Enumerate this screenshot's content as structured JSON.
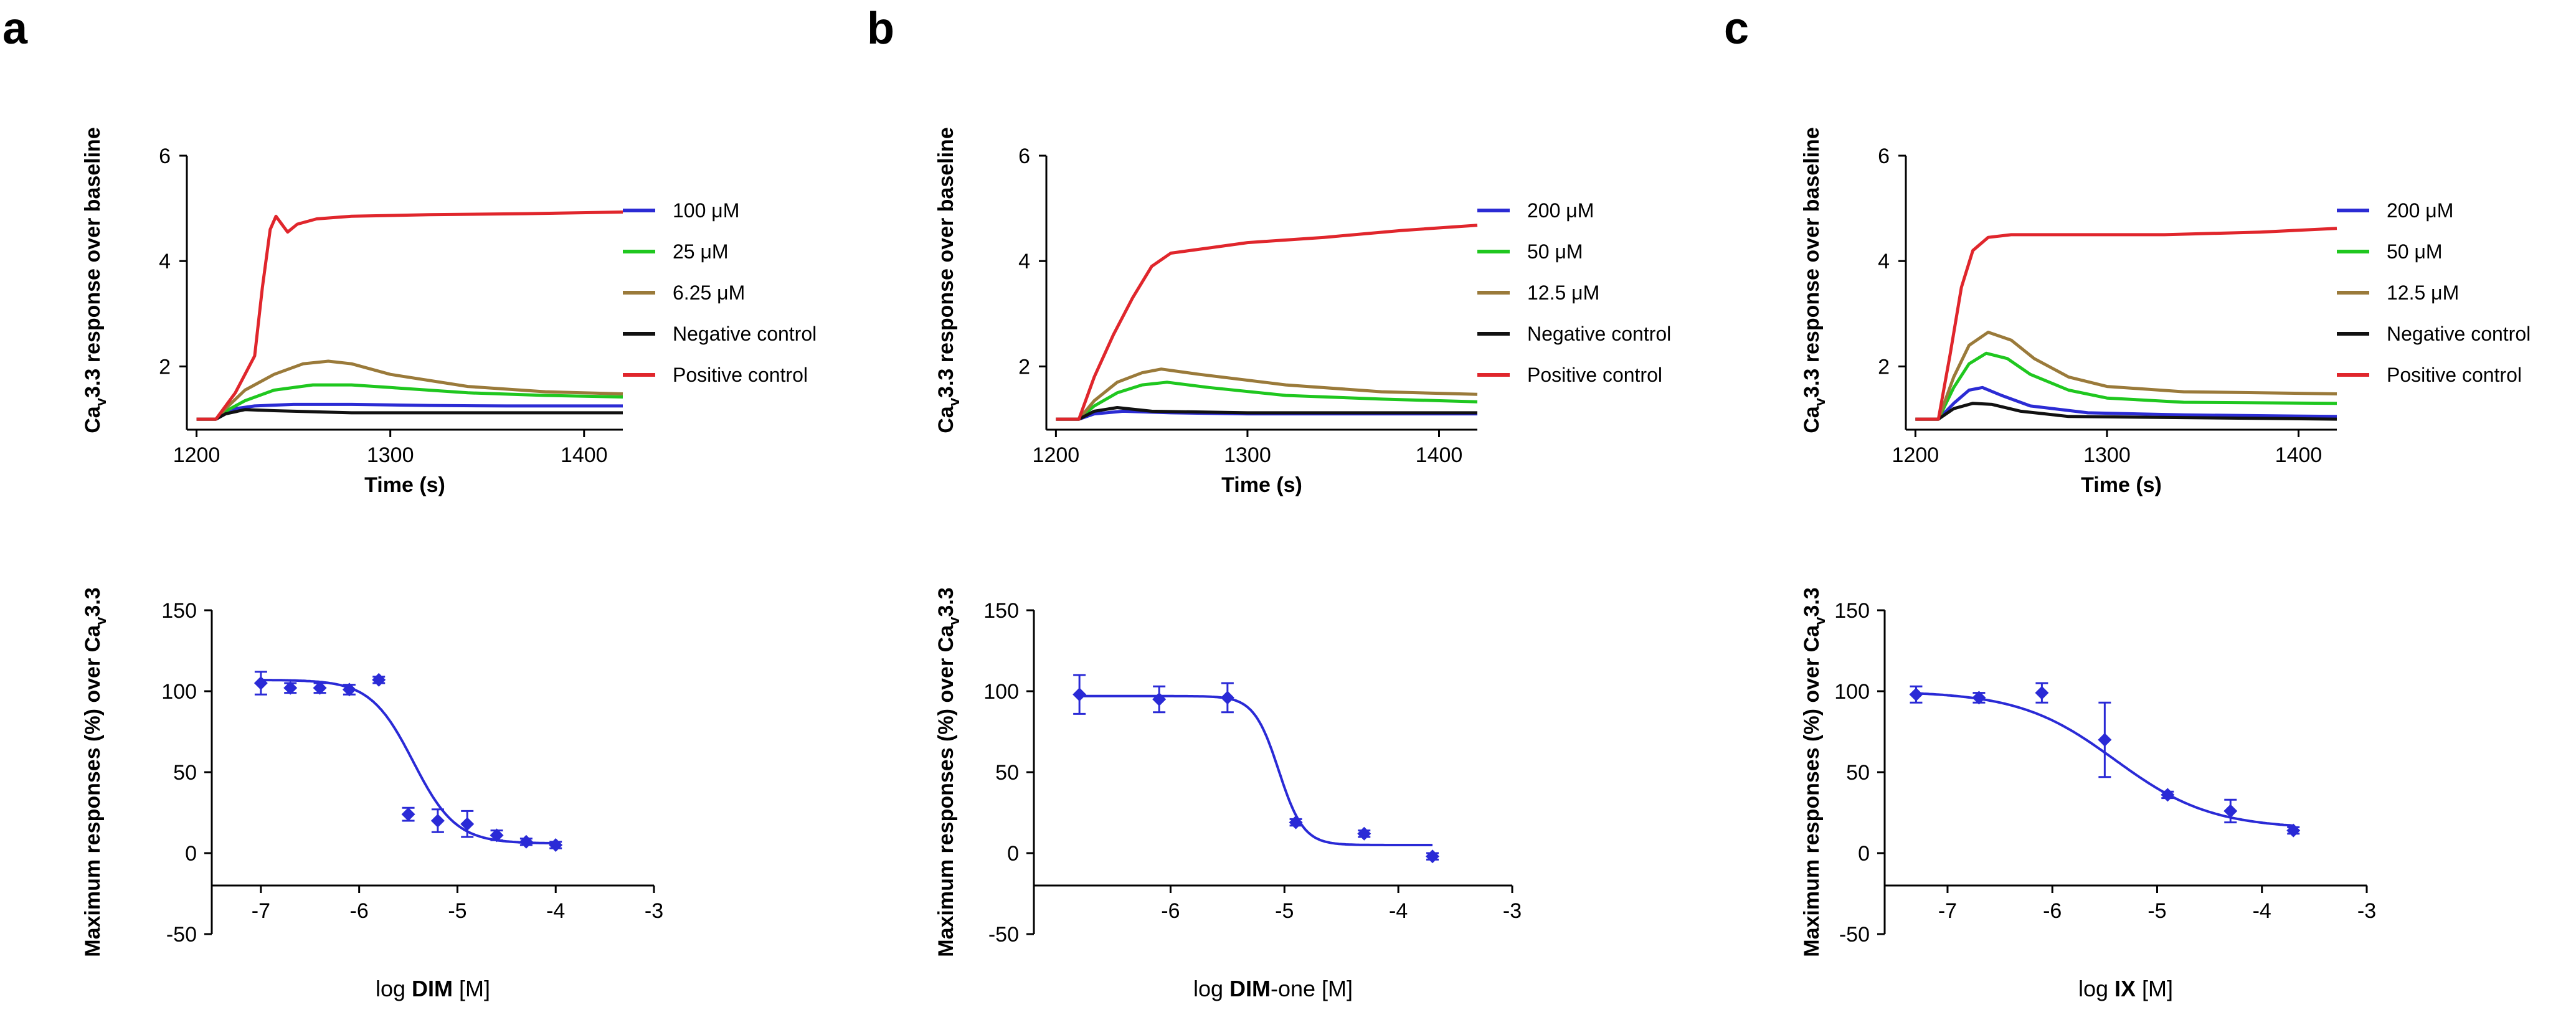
{
  "colors": {
    "blue": "#2b2bd4",
    "green": "#1fc71f",
    "brown": "#9a7a3a",
    "black": "#111111",
    "red": "#e0262c",
    "fit": "#2a2ad6"
  },
  "chart_data": [
    {
      "panel": "a",
      "type": "line",
      "title": "",
      "xlabel": "Time (s)",
      "ylabel_main": "Ca",
      "ylabel_sub": "v",
      "ylabel_rest": "3.3 response over baseline",
      "xlim": [
        1195,
        1420
      ],
      "ylim": [
        0.8,
        6
      ],
      "xticks": [
        1200,
        1300,
        1400
      ],
      "yticks": [
        2,
        4,
        6
      ],
      "series": [
        {
          "name": "100 μM",
          "color": "blue",
          "x": [
            1200,
            1210,
            1215,
            1220,
            1230,
            1250,
            1280,
            1320,
            1360,
            1420
          ],
          "y": [
            1.0,
            1.0,
            1.1,
            1.2,
            1.25,
            1.28,
            1.28,
            1.26,
            1.25,
            1.25
          ]
        },
        {
          "name": "25 μM",
          "color": "green",
          "x": [
            1200,
            1210,
            1215,
            1225,
            1240,
            1260,
            1280,
            1300,
            1340,
            1380,
            1420
          ],
          "y": [
            1.0,
            1.0,
            1.15,
            1.35,
            1.55,
            1.65,
            1.65,
            1.6,
            1.5,
            1.45,
            1.42
          ]
        },
        {
          "name": "6.25 μM",
          "color": "brown",
          "x": [
            1200,
            1210,
            1215,
            1225,
            1240,
            1255,
            1268,
            1280,
            1300,
            1340,
            1380,
            1420
          ],
          "y": [
            1.0,
            1.0,
            1.2,
            1.55,
            1.85,
            2.05,
            2.1,
            2.05,
            1.85,
            1.62,
            1.52,
            1.48
          ]
        },
        {
          "name": "Negative control",
          "color": "black",
          "x": [
            1200,
            1210,
            1215,
            1225,
            1240,
            1280,
            1340,
            1420
          ],
          "y": [
            1.0,
            1.0,
            1.1,
            1.18,
            1.16,
            1.12,
            1.12,
            1.12
          ]
        },
        {
          "name": "Positive control",
          "color": "red",
          "x": [
            1200,
            1210,
            1220,
            1230,
            1234,
            1238,
            1241,
            1244,
            1247,
            1252,
            1262,
            1280,
            1320,
            1370,
            1420
          ],
          "y": [
            1.0,
            1.0,
            1.5,
            2.2,
            3.5,
            4.6,
            4.85,
            4.7,
            4.55,
            4.7,
            4.8,
            4.85,
            4.88,
            4.9,
            4.93
          ]
        }
      ]
    },
    {
      "panel": "b",
      "type": "line",
      "title": "",
      "xlabel": "Time (s)",
      "ylabel_main": "Ca",
      "ylabel_sub": "v",
      "ylabel_rest": "3.3 response over baseline",
      "xlim": [
        1195,
        1420
      ],
      "ylim": [
        0.8,
        6
      ],
      "xticks": [
        1200,
        1300,
        1400
      ],
      "yticks": [
        2,
        4,
        6
      ],
      "series": [
        {
          "name": "200 μM",
          "color": "blue",
          "x": [
            1200,
            1212,
            1220,
            1235,
            1260,
            1300,
            1420
          ],
          "y": [
            1.0,
            1.0,
            1.1,
            1.15,
            1.12,
            1.1,
            1.1
          ]
        },
        {
          "name": "50 μM",
          "color": "green",
          "x": [
            1200,
            1212,
            1220,
            1232,
            1245,
            1258,
            1280,
            1320,
            1370,
            1420
          ],
          "y": [
            1.0,
            1.0,
            1.25,
            1.5,
            1.65,
            1.7,
            1.6,
            1.45,
            1.38,
            1.33
          ]
        },
        {
          "name": "12.5 μM",
          "color": "brown",
          "x": [
            1200,
            1212,
            1220,
            1232,
            1245,
            1255,
            1275,
            1320,
            1370,
            1420
          ],
          "y": [
            1.0,
            1.0,
            1.35,
            1.7,
            1.88,
            1.95,
            1.85,
            1.65,
            1.52,
            1.47
          ]
        },
        {
          "name": "Negative control",
          "color": "black",
          "x": [
            1200,
            1212,
            1220,
            1232,
            1250,
            1300,
            1420
          ],
          "y": [
            1.0,
            1.0,
            1.15,
            1.22,
            1.15,
            1.12,
            1.12
          ]
        },
        {
          "name": "Positive control",
          "color": "red",
          "x": [
            1200,
            1212,
            1220,
            1230,
            1240,
            1250,
            1260,
            1280,
            1300,
            1340,
            1380,
            1420
          ],
          "y": [
            1.0,
            1.0,
            1.8,
            2.6,
            3.3,
            3.9,
            4.15,
            4.25,
            4.35,
            4.45,
            4.58,
            4.68
          ]
        }
      ]
    },
    {
      "panel": "c",
      "type": "line",
      "title": "",
      "xlabel": "Time (s)",
      "ylabel_main": "Ca",
      "ylabel_sub": "v",
      "ylabel_rest": "3.3 response over baseline",
      "xlim": [
        1195,
        1420
      ],
      "ylim": [
        0.8,
        6
      ],
      "xticks": [
        1200,
        1300,
        1400
      ],
      "yticks": [
        2,
        4,
        6
      ],
      "series": [
        {
          "name": "200 μM",
          "color": "blue",
          "x": [
            1200,
            1212,
            1220,
            1228,
            1235,
            1245,
            1260,
            1290,
            1340,
            1420
          ],
          "y": [
            1.0,
            1.0,
            1.3,
            1.55,
            1.6,
            1.45,
            1.25,
            1.12,
            1.08,
            1.05
          ]
        },
        {
          "name": "50 μM",
          "color": "green",
          "x": [
            1200,
            1212,
            1220,
            1228,
            1237,
            1248,
            1260,
            1280,
            1300,
            1340,
            1420
          ],
          "y": [
            1.0,
            1.0,
            1.6,
            2.05,
            2.25,
            2.15,
            1.85,
            1.55,
            1.4,
            1.32,
            1.3
          ]
        },
        {
          "name": "12.5 μM",
          "color": "brown",
          "x": [
            1200,
            1212,
            1220,
            1228,
            1238,
            1250,
            1262,
            1280,
            1300,
            1340,
            1420
          ],
          "y": [
            1.0,
            1.0,
            1.8,
            2.4,
            2.65,
            2.5,
            2.15,
            1.8,
            1.62,
            1.52,
            1.48
          ]
        },
        {
          "name": "Negative control",
          "color": "black",
          "x": [
            1200,
            1212,
            1220,
            1230,
            1240,
            1255,
            1280,
            1420
          ],
          "y": [
            1.0,
            1.0,
            1.2,
            1.3,
            1.28,
            1.15,
            1.05,
            1.0
          ]
        },
        {
          "name": "Positive control",
          "color": "red",
          "x": [
            1200,
            1212,
            1218,
            1224,
            1230,
            1238,
            1250,
            1280,
            1330,
            1380,
            1420
          ],
          "y": [
            1.0,
            1.0,
            2.2,
            3.5,
            4.2,
            4.45,
            4.5,
            4.5,
            4.5,
            4.55,
            4.62
          ]
        }
      ]
    },
    {
      "panel": "a",
      "type": "scatter",
      "subtype": "dose-response",
      "xlabel_prefix": "log ",
      "xlabel_bold": "DIM",
      "xlabel_suffix": " [M]",
      "ylabel_main": "Maximum responses (%) over Ca",
      "ylabel_sub": "v",
      "ylabel_rest": "3.3",
      "xlim": [
        -7.5,
        -3
      ],
      "ylim": [
        -50,
        150
      ],
      "xticks": [
        -7,
        -6,
        -5,
        -4,
        -3
      ],
      "yticks": [
        -50,
        0,
        50,
        100,
        150
      ],
      "points": [
        {
          "x": -7.0,
          "y": 105,
          "err": 7
        },
        {
          "x": -6.7,
          "y": 102,
          "err": 3
        },
        {
          "x": -6.4,
          "y": 102,
          "err": 3
        },
        {
          "x": -6.1,
          "y": 101,
          "err": 3
        },
        {
          "x": -5.8,
          "y": 107,
          "err": 2
        },
        {
          "x": -5.5,
          "y": 24,
          "err": 4
        },
        {
          "x": -5.2,
          "y": 20,
          "err": 7
        },
        {
          "x": -4.9,
          "y": 18,
          "err": 8
        },
        {
          "x": -4.6,
          "y": 11,
          "err": 3
        },
        {
          "x": -4.3,
          "y": 7,
          "err": 2
        },
        {
          "x": -4.0,
          "y": 5,
          "err": 2
        }
      ],
      "fit": {
        "top": 107,
        "bottom": 6,
        "logIC50": -5.45,
        "hill": 2.0,
        "xrange": [
          -7.0,
          -4.0
        ]
      }
    },
    {
      "panel": "b",
      "type": "scatter",
      "subtype": "dose-response",
      "xlabel_prefix": "log ",
      "xlabel_bold": "DIM",
      "xlabel_suffix": "-one [M]",
      "ylabel_main": "Maximum responses (%) over Ca",
      "ylabel_sub": "v",
      "ylabel_rest": "3.3",
      "xlim": [
        -7.2,
        -3
      ],
      "ylim": [
        -50,
        150
      ],
      "xticks": [
        -6,
        -5,
        -4,
        -3
      ],
      "yticks": [
        -50,
        0,
        50,
        100,
        150
      ],
      "points": [
        {
          "x": -6.8,
          "y": 98,
          "err": 12
        },
        {
          "x": -6.1,
          "y": 95,
          "err": 8
        },
        {
          "x": -5.5,
          "y": 96,
          "err": 9
        },
        {
          "x": -4.9,
          "y": 19,
          "err": 2
        },
        {
          "x": -4.3,
          "y": 12,
          "err": 2
        },
        {
          "x": -3.7,
          "y": -2,
          "err": 2
        }
      ],
      "fit": {
        "top": 97,
        "bottom": 5,
        "logIC50": -5.05,
        "hill": 4.0,
        "xrange": [
          -6.8,
          -3.7
        ]
      }
    },
    {
      "panel": "c",
      "type": "scatter",
      "subtype": "dose-response",
      "xlabel_prefix": "log ",
      "xlabel_bold": "IX",
      "xlabel_suffix": " [M]",
      "ylabel_main": "Maximum responses (%) over Ca",
      "ylabel_sub": "v",
      "ylabel_rest": "3.3",
      "xlim": [
        -7.6,
        -3
      ],
      "ylim": [
        -50,
        150
      ],
      "xticks": [
        -7,
        -6,
        -5,
        -4,
        -3
      ],
      "yticks": [
        -50,
        0,
        50,
        100,
        150
      ],
      "points": [
        {
          "x": -7.3,
          "y": 98,
          "err": 5
        },
        {
          "x": -6.7,
          "y": 96,
          "err": 3
        },
        {
          "x": -6.1,
          "y": 99,
          "err": 6
        },
        {
          "x": -5.5,
          "y": 70,
          "err": 23
        },
        {
          "x": -4.9,
          "y": 36,
          "err": 2
        },
        {
          "x": -4.3,
          "y": 26,
          "err": 7
        },
        {
          "x": -3.7,
          "y": 14,
          "err": 2
        }
      ],
      "fit": {
        "top": 100,
        "bottom": 15,
        "logIC50": -5.4,
        "hill": 0.95,
        "xrange": [
          -7.3,
          -3.7
        ]
      }
    }
  ]
}
